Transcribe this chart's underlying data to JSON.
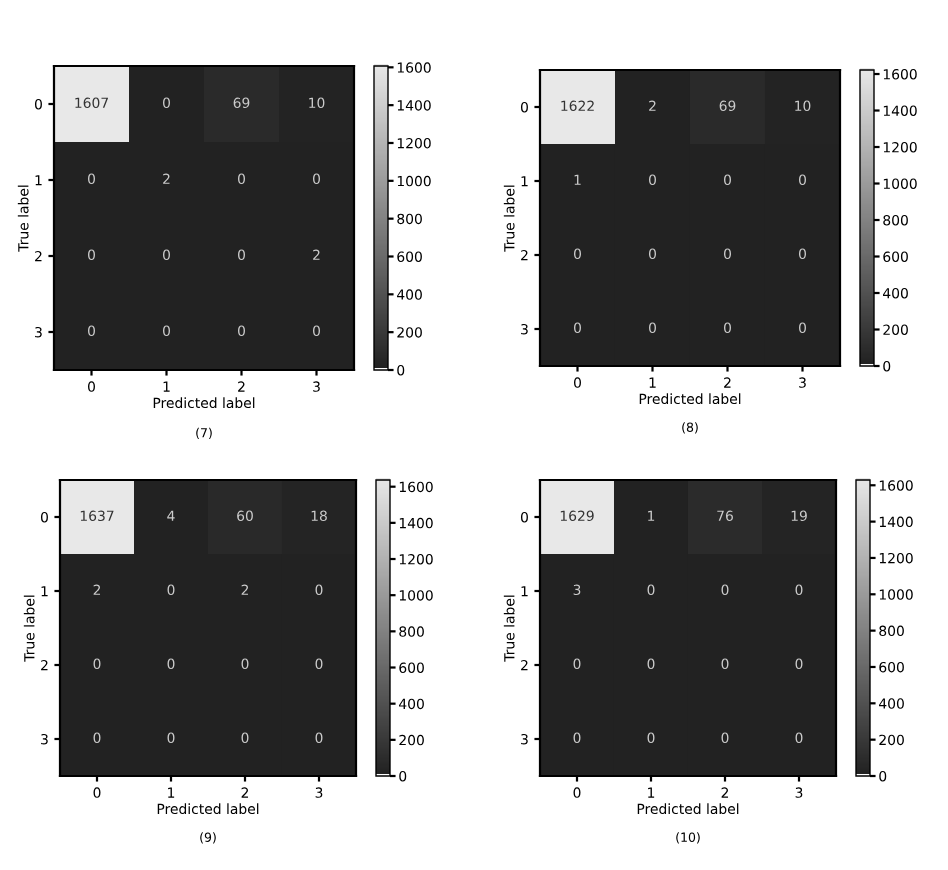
{
  "chart_data": [
    {
      "type": "heatmap",
      "xlabel": "Predicted label",
      "ylabel": "True label",
      "categories": [
        "0",
        "1",
        "2",
        "3"
      ],
      "y_categories": [
        "0",
        "1",
        "2",
        "3"
      ],
      "cells": [
        [
          1607,
          0,
          69,
          10
        ],
        [
          0,
          2,
          0,
          0
        ],
        [
          0,
          0,
          0,
          2
        ],
        [
          0,
          0,
          0,
          0
        ]
      ],
      "clim": [
        0,
        1607
      ],
      "cticks": [
        0,
        200,
        400,
        600,
        800,
        1000,
        1200,
        1400,
        1600
      ],
      "annotations": [
        "(7)"
      ],
      "data_labels": true
    },
    {
      "type": "heatmap",
      "xlabel": "Predicted label",
      "ylabel": "True label",
      "categories": [
        "0",
        "1",
        "2",
        "3"
      ],
      "y_categories": [
        "0",
        "1",
        "2",
        "3"
      ],
      "cells": [
        [
          1622,
          2,
          69,
          10
        ],
        [
          1,
          0,
          0,
          0
        ],
        [
          0,
          0,
          0,
          0
        ],
        [
          0,
          0,
          0,
          0
        ]
      ],
      "clim": [
        0,
        1622
      ],
      "cticks": [
        0,
        200,
        400,
        600,
        800,
        1000,
        1200,
        1400,
        1600
      ],
      "annotations": [
        "(8)"
      ],
      "data_labels": true
    },
    {
      "type": "heatmap",
      "xlabel": "Predicted label",
      "ylabel": "True label",
      "categories": [
        "0",
        "1",
        "2",
        "3"
      ],
      "y_categories": [
        "0",
        "1",
        "2",
        "3"
      ],
      "cells": [
        [
          1637,
          4,
          60,
          18
        ],
        [
          2,
          0,
          2,
          0
        ],
        [
          0,
          0,
          0,
          0
        ],
        [
          0,
          0,
          0,
          0
        ]
      ],
      "clim": [
        0,
        1637
      ],
      "cticks": [
        0,
        200,
        400,
        600,
        800,
        1000,
        1200,
        1400,
        1600
      ],
      "annotations": [
        "(9)"
      ],
      "data_labels": true
    },
    {
      "type": "heatmap",
      "xlabel": "Predicted label",
      "ylabel": "True label",
      "categories": [
        "0",
        "1",
        "2",
        "3"
      ],
      "y_categories": [
        "0",
        "1",
        "2",
        "3"
      ],
      "cells": [
        [
          1629,
          1,
          76,
          19
        ],
        [
          3,
          0,
          0,
          0
        ],
        [
          0,
          0,
          0,
          0
        ],
        [
          0,
          0,
          0,
          0
        ]
      ],
      "clim": [
        0,
        1629
      ],
      "cticks": [
        0,
        200,
        400,
        600,
        800,
        1000,
        1200,
        1400,
        1600
      ],
      "annotations": [
        "(10)"
      ],
      "data_labels": true
    }
  ]
}
